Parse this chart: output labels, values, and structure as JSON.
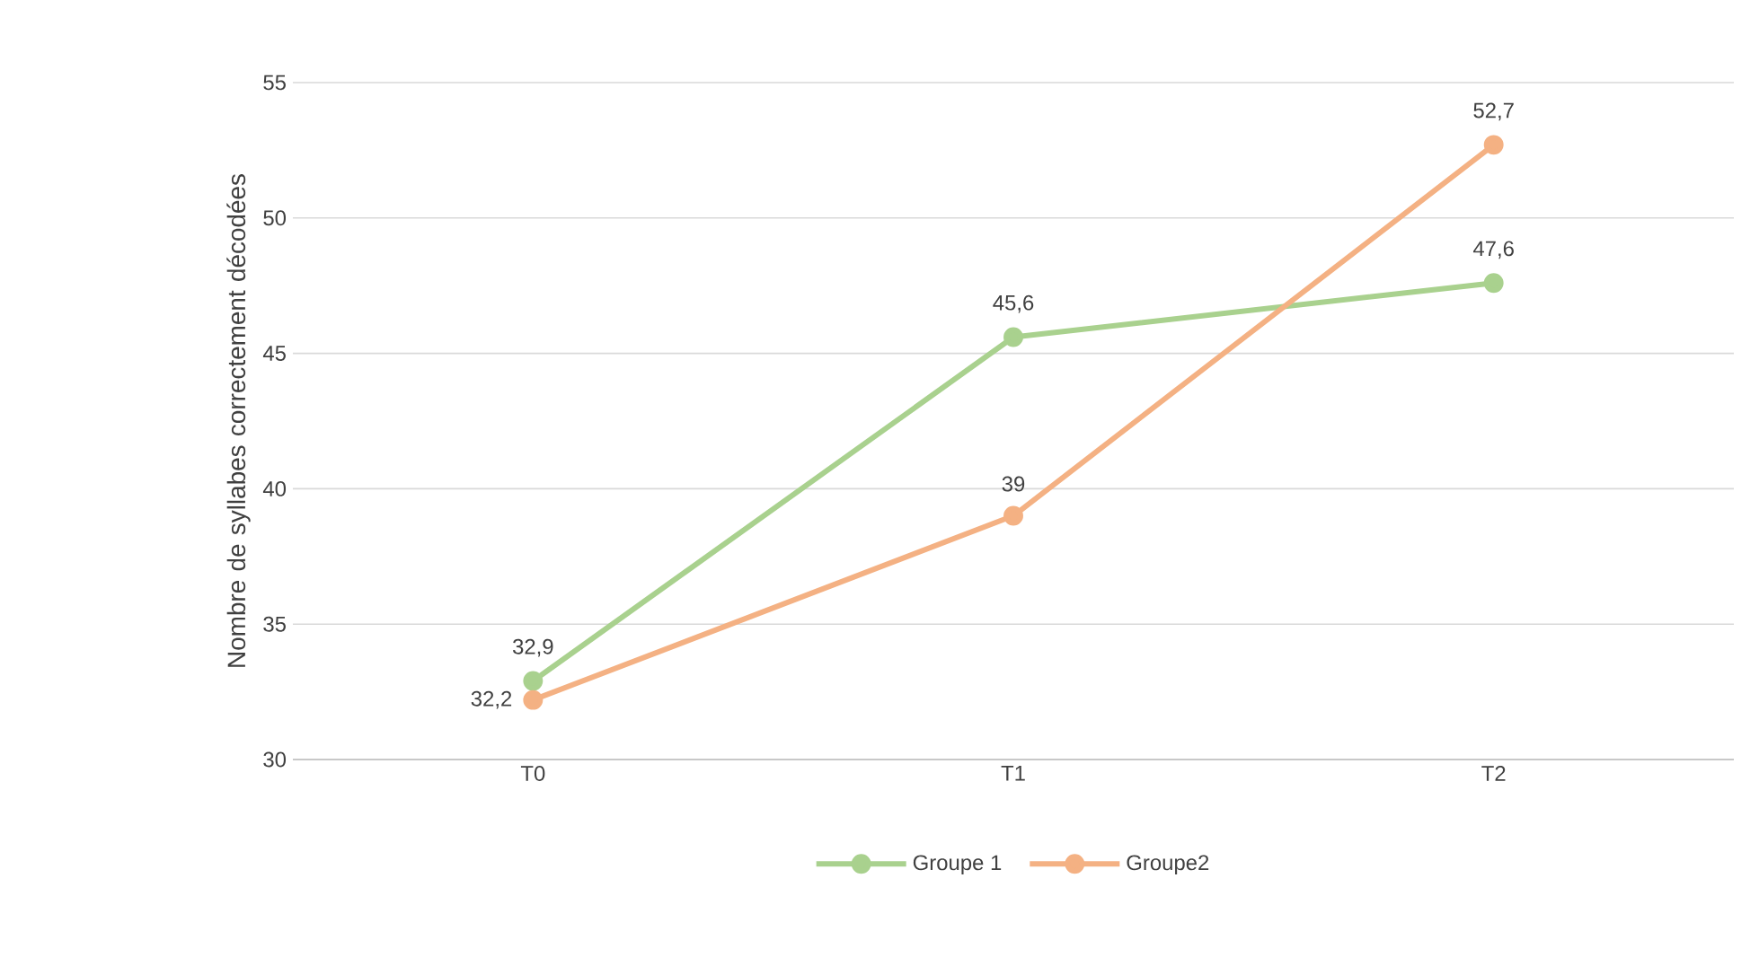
{
  "chart_data": {
    "type": "line",
    "ylabel": "Nombre de syllabes correctement décodées",
    "categories": [
      "T0",
      "T1",
      "T2"
    ],
    "series": [
      {
        "name": "Groupe 1",
        "color": "#a9d18e",
        "values": [
          32.9,
          45.6,
          47.6
        ],
        "value_labels": [
          "32,9",
          "45,6",
          "47,6"
        ]
      },
      {
        "name": "Groupe2",
        "color": "#f4b183",
        "values": [
          32.2,
          39,
          52.7
        ],
        "value_labels": [
          "32,2",
          "39",
          "52,7"
        ]
      }
    ],
    "ylim": [
      30,
      55
    ],
    "yticks": [
      30,
      35,
      40,
      45,
      50,
      55
    ],
    "grid": "y",
    "legend": "bottom",
    "marker": "circle",
    "line_style": "solid"
  }
}
